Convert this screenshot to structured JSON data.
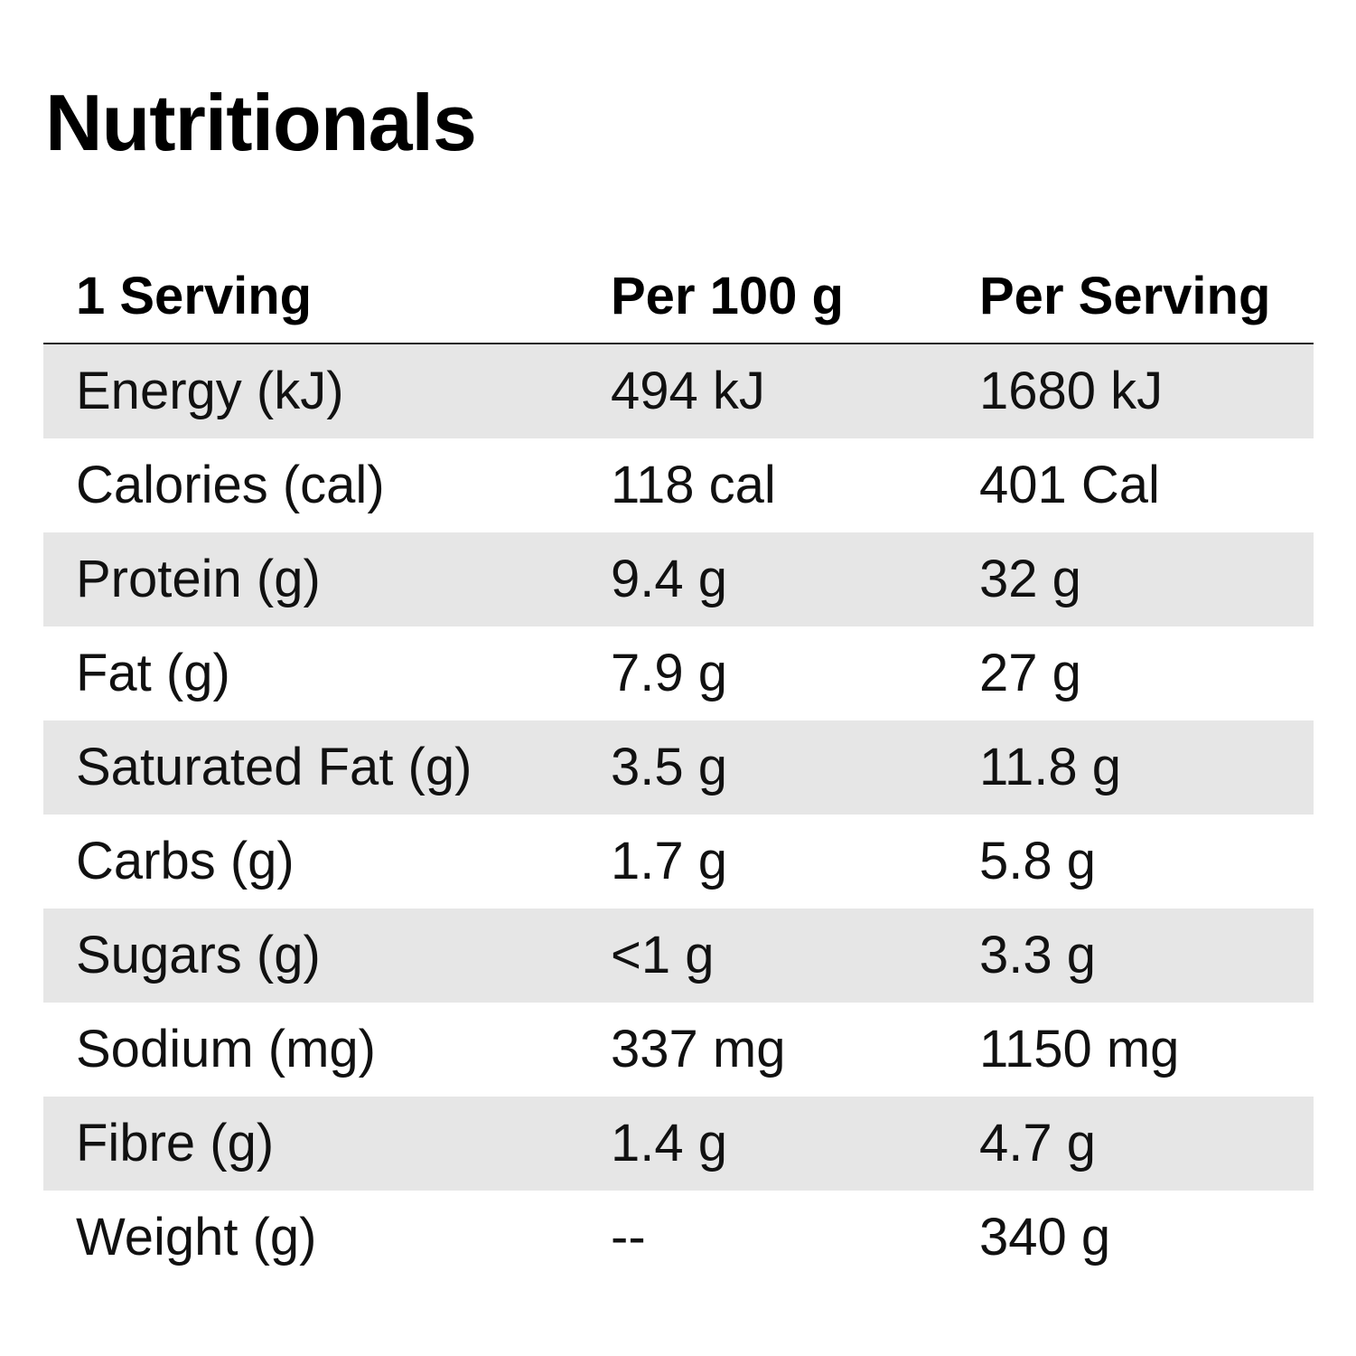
{
  "title": "Nutritionals",
  "table": {
    "headers": [
      "1 Serving",
      "Per 100 g",
      "Per Serving"
    ],
    "rows": [
      {
        "label": "Energy (kJ)",
        "per100": "494 kJ",
        "perServing": "1680 kJ"
      },
      {
        "label": "Calories (cal)",
        "per100": "118 cal",
        "perServing": "401 Cal"
      },
      {
        "label": "Protein (g)",
        "per100": "9.4 g",
        "perServing": "32 g"
      },
      {
        "label": "Fat (g)",
        "per100": "7.9 g",
        "perServing": "27 g"
      },
      {
        "label": "Saturated Fat (g)",
        "per100": "3.5 g",
        "perServing": "11.8 g"
      },
      {
        "label": "Carbs (g)",
        "per100": "1.7 g",
        "perServing": "5.8 g"
      },
      {
        "label": "Sugars (g)",
        "per100": "<1 g",
        "perServing": "3.3 g"
      },
      {
        "label": "Sodium (mg)",
        "per100": "337 mg",
        "perServing": "1150 mg"
      },
      {
        "label": "Fibre (g)",
        "per100": "1.4 g",
        "perServing": "4.7 g"
      },
      {
        "label": "Weight (g)",
        "per100": "--",
        "perServing": "340 g"
      }
    ]
  },
  "colors": {
    "row_shade": "#e6e6e6",
    "text": "#111111",
    "header_rule": "#222222"
  }
}
